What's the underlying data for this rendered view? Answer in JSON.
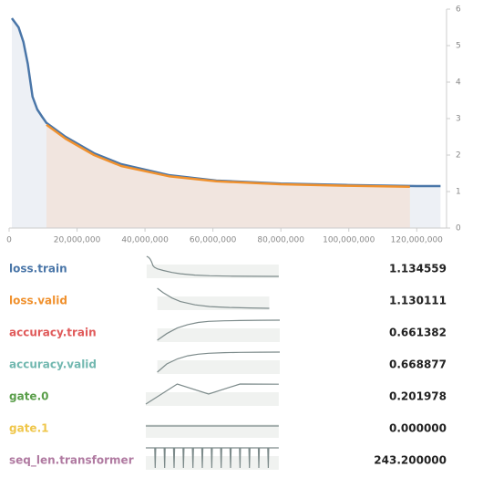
{
  "chart_data": {
    "type": "line",
    "xlim": [
      0,
      128000000
    ],
    "ylim": [
      0,
      6
    ],
    "xticks": [
      0,
      {
        "value": 20000000,
        "label": "20,000,000"
      },
      {
        "value": 40000000,
        "label": "40,000,000"
      },
      {
        "value": 60000000,
        "label": "60,000,000"
      },
      {
        "value": 80000000,
        "label": "80,000,000"
      },
      {
        "value": 100000000,
        "label": "100,000,000"
      },
      {
        "value": 120000000,
        "label": "120,000,000"
      }
    ],
    "yticks": [
      0,
      1,
      2,
      3,
      4,
      5,
      6
    ],
    "series": [
      {
        "name": "loss.train",
        "color": "#4a76a8",
        "fill": "#edf0f5",
        "x": [
          800000,
          2800000,
          4200000,
          5500000,
          6900000,
          8300000,
          9700000,
          11000000,
          16600000,
          25000000,
          33000000,
          47000000,
          61000000,
          80000000,
          99000000,
          120000000,
          127000000
        ],
        "values": [
          5.75,
          5.5,
          5.1,
          4.5,
          3.6,
          3.25,
          3.05,
          2.88,
          2.5,
          2.05,
          1.75,
          1.45,
          1.3,
          1.22,
          1.18,
          1.15,
          1.15
        ]
      },
      {
        "name": "loss.valid",
        "color": "#f0912e",
        "fill": "#f1e5df",
        "x": [
          11000000,
          16600000,
          25000000,
          33000000,
          47000000,
          61000000,
          80000000,
          99000000,
          118000000
        ],
        "values": [
          2.83,
          2.45,
          2.0,
          1.7,
          1.42,
          1.28,
          1.2,
          1.16,
          1.13
        ]
      }
    ]
  },
  "metrics": [
    {
      "name": "loss.train",
      "color": "#4a76a8",
      "value": "1.134559"
    },
    {
      "name": "loss.valid",
      "color": "#f0912e",
      "value": "1.130111"
    },
    {
      "name": "accuracy.train",
      "color": "#e05a5a",
      "value": "0.661382",
      "sparkline": {
        "x": [
          11000000,
          20000000,
          30000000,
          40000000,
          50000000,
          60000000,
          75000000,
          90000000,
          110000000,
          128000000
        ],
        "values": [
          0.3,
          0.42,
          0.52,
          0.58,
          0.62,
          0.64,
          0.65,
          0.655,
          0.66,
          0.661
        ]
      }
    },
    {
      "name": "accuracy.valid",
      "color": "#72b8b0",
      "value": "0.668877",
      "sparkline": {
        "x": [
          11000000,
          20000000,
          30000000,
          40000000,
          50000000,
          60000000,
          75000000,
          90000000,
          110000000,
          128000000
        ],
        "values": [
          0.35,
          0.48,
          0.56,
          0.61,
          0.635,
          0.65,
          0.66,
          0.664,
          0.667,
          0.669
        ]
      }
    },
    {
      "name": "gate.0",
      "color": "#5a9e4a",
      "value": "0.201978",
      "sparkline": {
        "x": [
          0,
          30000000,
          60000000,
          90000000,
          127000000
        ],
        "values": [
          0.2,
          0.202,
          0.201,
          0.202,
          0.201978
        ]
      }
    },
    {
      "name": "gate.1",
      "color": "#efc64a",
      "value": "0.000000",
      "sparkline": {
        "x": [
          0,
          127000000
        ],
        "values": [
          0,
          0
        ]
      }
    },
    {
      "name": "seq_len.transformer",
      "color": "#b07aa1",
      "value": "243.200000",
      "sparkline": {
        "x": [
          0,
          8500000,
          9000000,
          9500000,
          17500000,
          18000000,
          18500000,
          26500000,
          27000000,
          27500000,
          35500000,
          36000000,
          36500000,
          44500000,
          45000000,
          45500000,
          53500000,
          54000000,
          54500000,
          62500000,
          63000000,
          63500000,
          71500000,
          72000000,
          72500000,
          80500000,
          81000000,
          81500000,
          89500000,
          90000000,
          90500000,
          98500000,
          99000000,
          99500000,
          107500000,
          108000000,
          108500000,
          116500000,
          117000000,
          117500000,
          127000000
        ],
        "values": [
          243,
          243,
          205,
          243,
          243,
          205,
          243,
          243,
          205,
          243,
          243,
          205,
          243,
          243,
          205,
          243,
          243,
          205,
          243,
          243,
          205,
          243,
          243,
          205,
          243,
          243,
          205,
          243,
          243,
          205,
          243,
          243,
          205,
          243,
          243,
          205,
          243,
          243,
          205,
          243,
          243
        ]
      }
    }
  ]
}
